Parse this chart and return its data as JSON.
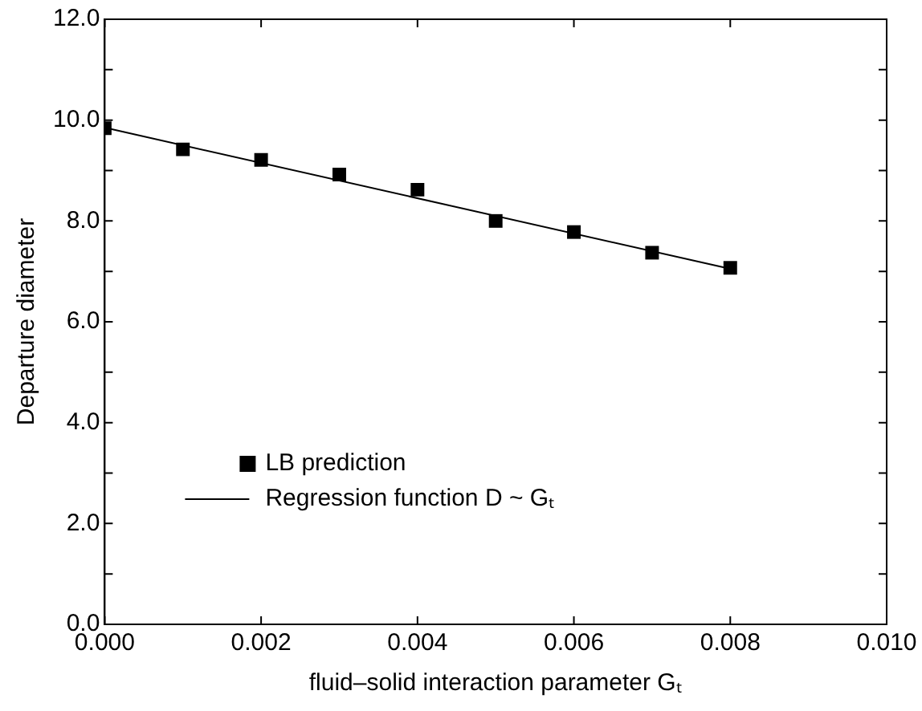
{
  "chart_data": {
    "type": "scatter",
    "xlabel": "fluid–solid interaction parameter Gₜ",
    "ylabel": "Departure diameter",
    "xlim": [
      0,
      0.01
    ],
    "xticks": [
      {
        "value": 0,
        "label": "0.000"
      },
      {
        "value": 0.002,
        "label": "0.002"
      },
      {
        "value": 0.004,
        "label": "0.004"
      },
      {
        "value": 0.006,
        "label": "0.006"
      },
      {
        "value": 0.008,
        "label": "0.008"
      },
      {
        "value": 0.01,
        "label": "0.010"
      }
    ],
    "ylim": [
      0,
      12
    ],
    "yticks": [
      {
        "value": 0,
        "label": "0.0"
      },
      {
        "value": 1,
        "label": null
      },
      {
        "value": 2,
        "label": "2.0"
      },
      {
        "value": 3,
        "label": null
      },
      {
        "value": 4,
        "label": "4.0"
      },
      {
        "value": 5,
        "label": null
      },
      {
        "value": 6,
        "label": "6.0"
      },
      {
        "value": 7,
        "label": null
      },
      {
        "value": 8,
        "label": "8.0"
      },
      {
        "value": 9,
        "label": null
      },
      {
        "value": 10,
        "label": "10.0"
      },
      {
        "value": 11,
        "label": null
      },
      {
        "value": 12,
        "label": "12.0"
      }
    ],
    "grid": false,
    "legend": "bottom left",
    "marker": "square",
    "series": [
      {
        "name": "LB prediction",
        "color": "#000000",
        "x": [
          0,
          0.001,
          0.002,
          0.003,
          0.004,
          0.005,
          0.006,
          0.007,
          0.008
        ],
        "values": [
          9.84,
          9.42,
          9.21,
          8.92,
          8.62,
          8.0,
          7.78,
          7.37,
          7.07
        ]
      },
      {
        "name": "Regression function D ~ Gₜ",
        "type": "line",
        "color": "#000000",
        "marker": "none",
        "line_style": "solid",
        "x": [
          0,
          0.008
        ],
        "values": [
          9.85,
          7.05
        ]
      }
    ]
  }
}
